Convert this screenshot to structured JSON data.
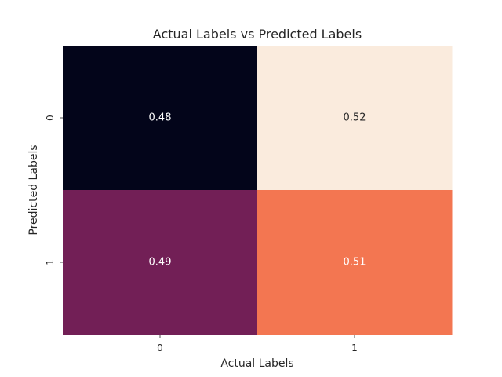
{
  "chart_data": {
    "type": "heatmap",
    "title": "Actual Labels vs Predicted Labels",
    "xlabel": "Actual Labels",
    "ylabel": "Predicted Labels",
    "x_categories": [
      "0",
      "1"
    ],
    "y_categories": [
      "0",
      "1"
    ],
    "values": [
      [
        0.48,
        0.52
      ],
      [
        0.49,
        0.51
      ]
    ],
    "value_labels": [
      [
        "0.48",
        "0.52"
      ],
      [
        "0.49",
        "0.51"
      ]
    ],
    "colorscale": "rocket",
    "colorbar": false,
    "cell_colors": [
      [
        "#03051a",
        "#faebdd"
      ],
      [
        "#721f56",
        "#f37651"
      ]
    ],
    "cell_text_colors": [
      [
        "#ffffff",
        "#262626"
      ],
      [
        "#ffffff",
        "#ffffff"
      ]
    ]
  }
}
